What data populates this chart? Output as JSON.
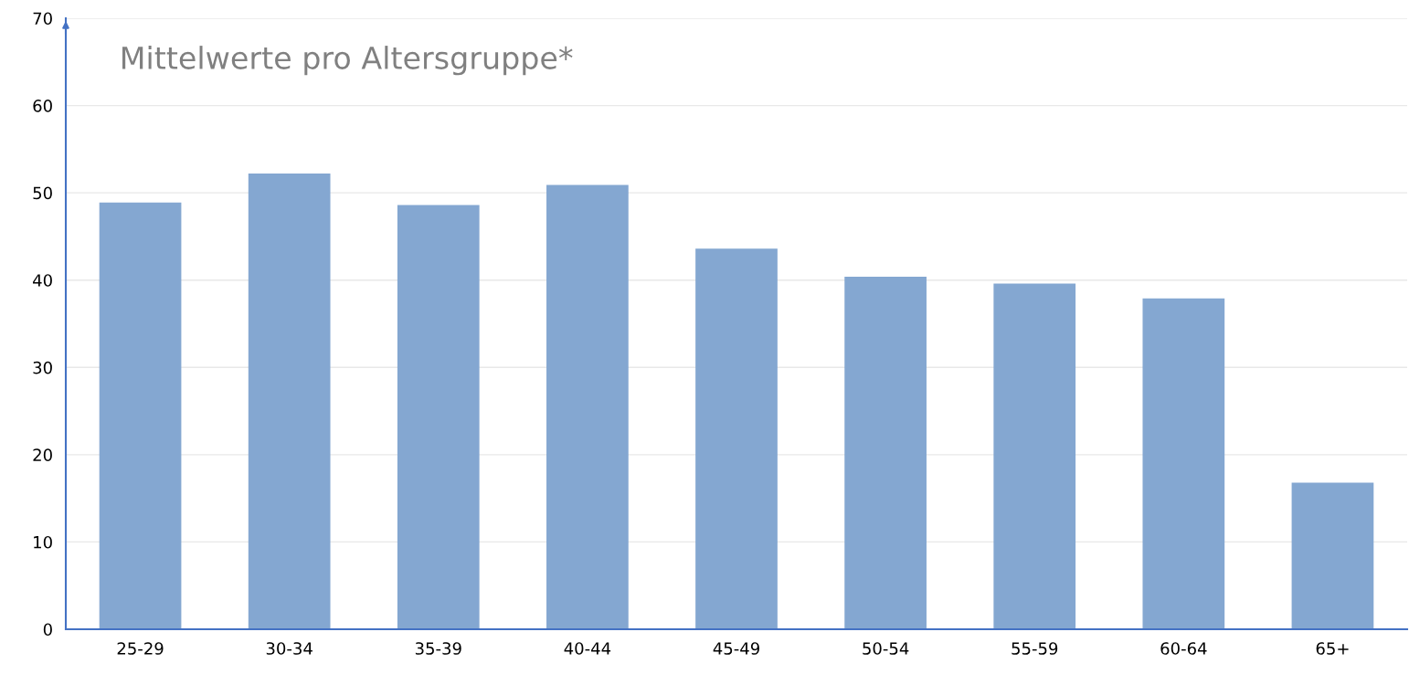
{
  "chart_data": {
    "type": "bar",
    "title": "Mittelwerte pro Altersgruppe*",
    "categories": [
      "25-29",
      "30-34",
      "35-39",
      "40-44",
      "45-49",
      "50-54",
      "55-59",
      "60-64",
      "65+"
    ],
    "values": [
      48.9,
      52.2,
      48.6,
      50.9,
      43.6,
      40.4,
      39.6,
      37.9,
      16.8
    ],
    "color": "#84a7d1",
    "ylim": [
      0,
      70
    ],
    "yticks": [
      0,
      10,
      20,
      30,
      40,
      50,
      60,
      70
    ],
    "grid": "y",
    "legend": false
  }
}
